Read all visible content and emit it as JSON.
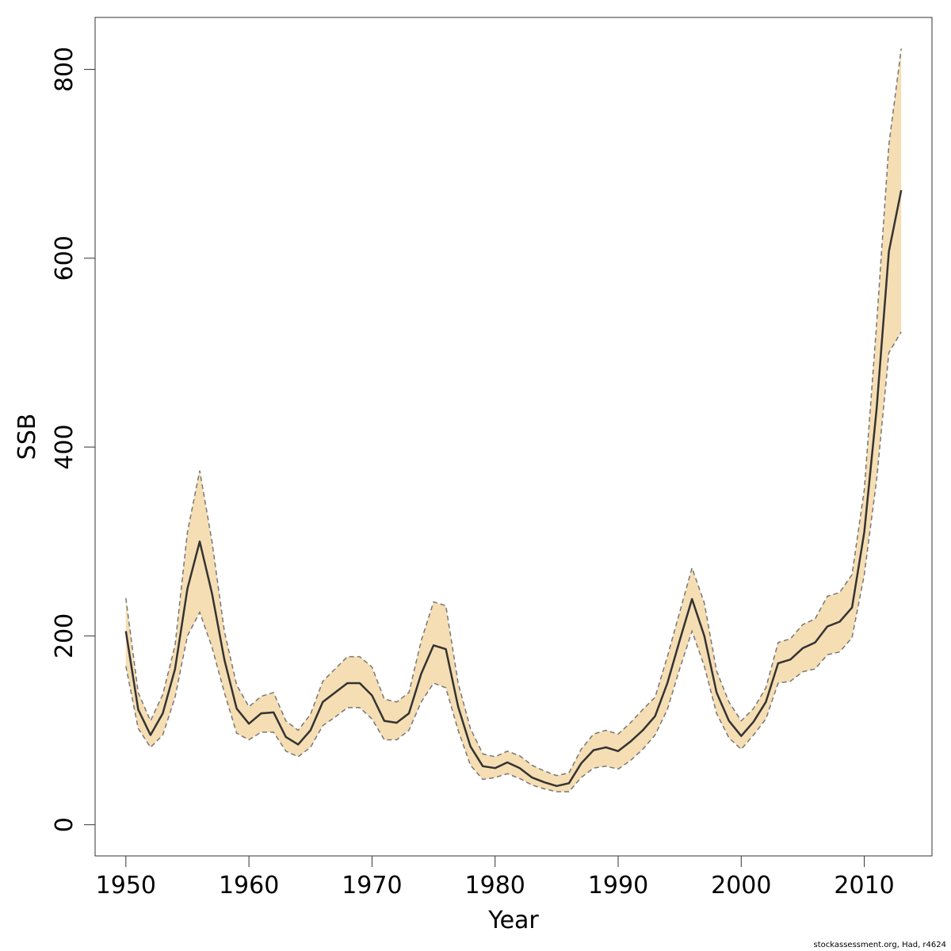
{
  "chart_data": {
    "type": "area",
    "title": "",
    "xlabel": "Year",
    "ylabel": "SSB",
    "xlim": [
      1947.5,
      2015.5
    ],
    "ylim": [
      -33,
      855
    ],
    "x_ticks": [
      1950,
      1960,
      1970,
      1980,
      1990,
      2000,
      2010
    ],
    "y_ticks": [
      0,
      200,
      400,
      600,
      800
    ],
    "grid": false,
    "band_color": "#f5deb3",
    "line_color": "#333333",
    "bound_color": "#777777",
    "x": [
      1950,
      1951,
      1952,
      1953,
      1954,
      1955,
      1956,
      1957,
      1958,
      1959,
      1960,
      1961,
      1962,
      1963,
      1964,
      1965,
      1966,
      1967,
      1968,
      1969,
      1970,
      1971,
      1972,
      1973,
      1974,
      1975,
      1976,
      1977,
      1978,
      1979,
      1980,
      1981,
      1982,
      1983,
      1984,
      1985,
      1986,
      1987,
      1988,
      1989,
      1990,
      1991,
      1992,
      1993,
      1994,
      1995,
      1996,
      1997,
      1998,
      1999,
      2000,
      2001,
      2002,
      2003,
      2004,
      2005,
      2006,
      2007,
      2008,
      2009,
      2010,
      2011,
      2012,
      2013
    ],
    "series": [
      {
        "values": [
          205,
          122,
          95,
          118,
          165,
          250,
          300,
          245,
          175,
          123,
          107,
          118,
          119,
          93,
          85,
          100,
          130,
          140,
          150,
          150,
          137,
          110,
          108,
          118,
          160,
          190,
          186,
          125,
          83,
          62,
          60,
          66,
          60,
          50,
          45,
          41,
          44,
          65,
          79,
          82,
          78,
          88,
          100,
          115,
          150,
          195,
          239,
          200,
          140,
          110,
          94,
          109,
          130,
          171,
          175,
          187,
          193,
          210,
          215,
          230,
          310,
          440,
          607,
          672
        ]
      },
      {
        "values": [
          240,
          140,
          110,
          138,
          190,
          310,
          375,
          300,
          205,
          148,
          125,
          136,
          140,
          110,
          100,
          117,
          152,
          165,
          178,
          178,
          167,
          133,
          130,
          140,
          195,
          236,
          232,
          150,
          102,
          75,
          72,
          78,
          73,
          63,
          57,
          52,
          55,
          80,
          96,
          100,
          96,
          108,
          122,
          135,
          178,
          225,
          272,
          235,
          163,
          130,
          110,
          123,
          145,
          193,
          197,
          212,
          218,
          242,
          246,
          265,
          355,
          530,
          720,
          822
        ]
      },
      {
        "values": [
          168,
          102,
          82,
          95,
          135,
          200,
          225,
          188,
          140,
          97,
          90,
          98,
          98,
          78,
          72,
          82,
          105,
          114,
          124,
          124,
          112,
          90,
          90,
          100,
          130,
          150,
          145,
          100,
          63,
          48,
          50,
          54,
          49,
          42,
          38,
          35,
          35,
          50,
          60,
          62,
          59,
          68,
          80,
          95,
          122,
          165,
          205,
          168,
          118,
          92,
          80,
          95,
          112,
          150,
          152,
          162,
          165,
          180,
          183,
          198,
          265,
          365,
          500,
          522
        ]
      }
    ]
  },
  "footnote": "stockassessment.org, Had, r4624"
}
